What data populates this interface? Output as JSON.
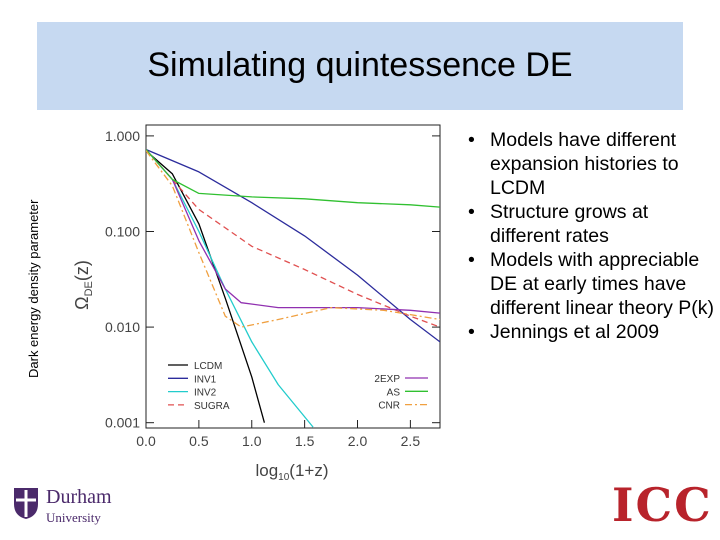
{
  "slide": {
    "title": "Simulating quintessence DE",
    "side_label": "Dark energy density parameter",
    "bullets": [
      "Models have different expansion histories to LCDM",
      "Structure grows at different rates",
      "Models with appreciable DE at early times have different linear theory P(k)",
      "Jennings et al 2009"
    ],
    "logo_left": "Durham",
    "logo_left_sub": "University",
    "logo_right": "ICC"
  },
  "chart_data": {
    "type": "line",
    "y_label": "Ω",
    "y_label_sub": "DE",
    "y_label_tail": "(z)",
    "x_label": "log",
    "x_label_sub": "10",
    "x_label_tail": "(1+z)",
    "xlim": [
      0,
      2.78
    ],
    "ylim": [
      0.00088,
      1.3
    ],
    "log_y": true,
    "xticks": [
      {
        "value": 0,
        "label": "0.0"
      },
      0.5,
      {
        "value": 1,
        "label": "1.0"
      },
      1.5,
      {
        "value": 2,
        "label": "2.0"
      },
      2.5
    ],
    "yticks": [
      {
        "value": 0.001,
        "label": "0.001"
      },
      {
        "value": 0.01,
        "label": "0.010"
      },
      {
        "value": 0.1,
        "label": "0.100"
      },
      {
        "value": 1,
        "label": "1.000"
      }
    ],
    "series": [
      {
        "name": "LCDM",
        "color": "#000000",
        "style": "solid",
        "legend": "left",
        "x": [
          0,
          0.25,
          0.5,
          0.75,
          1.0,
          1.12
        ],
        "values": [
          0.7,
          0.4,
          0.12,
          0.02,
          0.003,
          0.001
        ]
      },
      {
        "name": "INV1",
        "color": "#2c2c9c",
        "style": "solid",
        "legend": "left",
        "x": [
          0,
          0.5,
          1.0,
          1.5,
          2.0,
          2.5,
          2.78
        ],
        "values": [
          0.72,
          0.42,
          0.2,
          0.09,
          0.035,
          0.012,
          0.007
        ]
      },
      {
        "name": "INV2",
        "color": "#22cccc",
        "style": "solid",
        "legend": "left",
        "x": [
          0,
          0.25,
          0.5,
          0.75,
          1.0,
          1.25,
          1.58
        ],
        "values": [
          0.72,
          0.35,
          0.1,
          0.025,
          0.007,
          0.0025,
          0.0009
        ]
      },
      {
        "name": "SUGRA",
        "color": "#e05050",
        "style": "dashed",
        "legend": "left",
        "x": [
          0,
          0.25,
          0.5,
          1.0,
          1.5,
          2.0,
          2.5,
          2.78
        ],
        "values": [
          0.72,
          0.35,
          0.17,
          0.07,
          0.04,
          0.022,
          0.013,
          0.01
        ]
      },
      {
        "name": "2EXP",
        "color": "#9030b0",
        "style": "solid",
        "legend": "right",
        "x": [
          0,
          0.25,
          0.5,
          0.75,
          0.9,
          1.25,
          2.0,
          2.5,
          2.78
        ],
        "values": [
          0.72,
          0.35,
          0.08,
          0.025,
          0.018,
          0.016,
          0.016,
          0.015,
          0.014
        ]
      },
      {
        "name": "AS",
        "color": "#30c030",
        "style": "solid",
        "legend": "right",
        "x": [
          0,
          0.25,
          0.5,
          1.0,
          1.5,
          2.0,
          2.5,
          2.78
        ],
        "values": [
          0.72,
          0.35,
          0.25,
          0.23,
          0.22,
          0.2,
          0.19,
          0.18
        ]
      },
      {
        "name": "CNR",
        "color": "#f0a040",
        "style": "dashdot",
        "legend": "right",
        "x": [
          0,
          0.25,
          0.5,
          0.75,
          0.9,
          1.25,
          1.75,
          2.25,
          2.78
        ],
        "values": [
          0.7,
          0.3,
          0.06,
          0.013,
          0.01,
          0.012,
          0.016,
          0.015,
          0.012
        ]
      }
    ]
  }
}
